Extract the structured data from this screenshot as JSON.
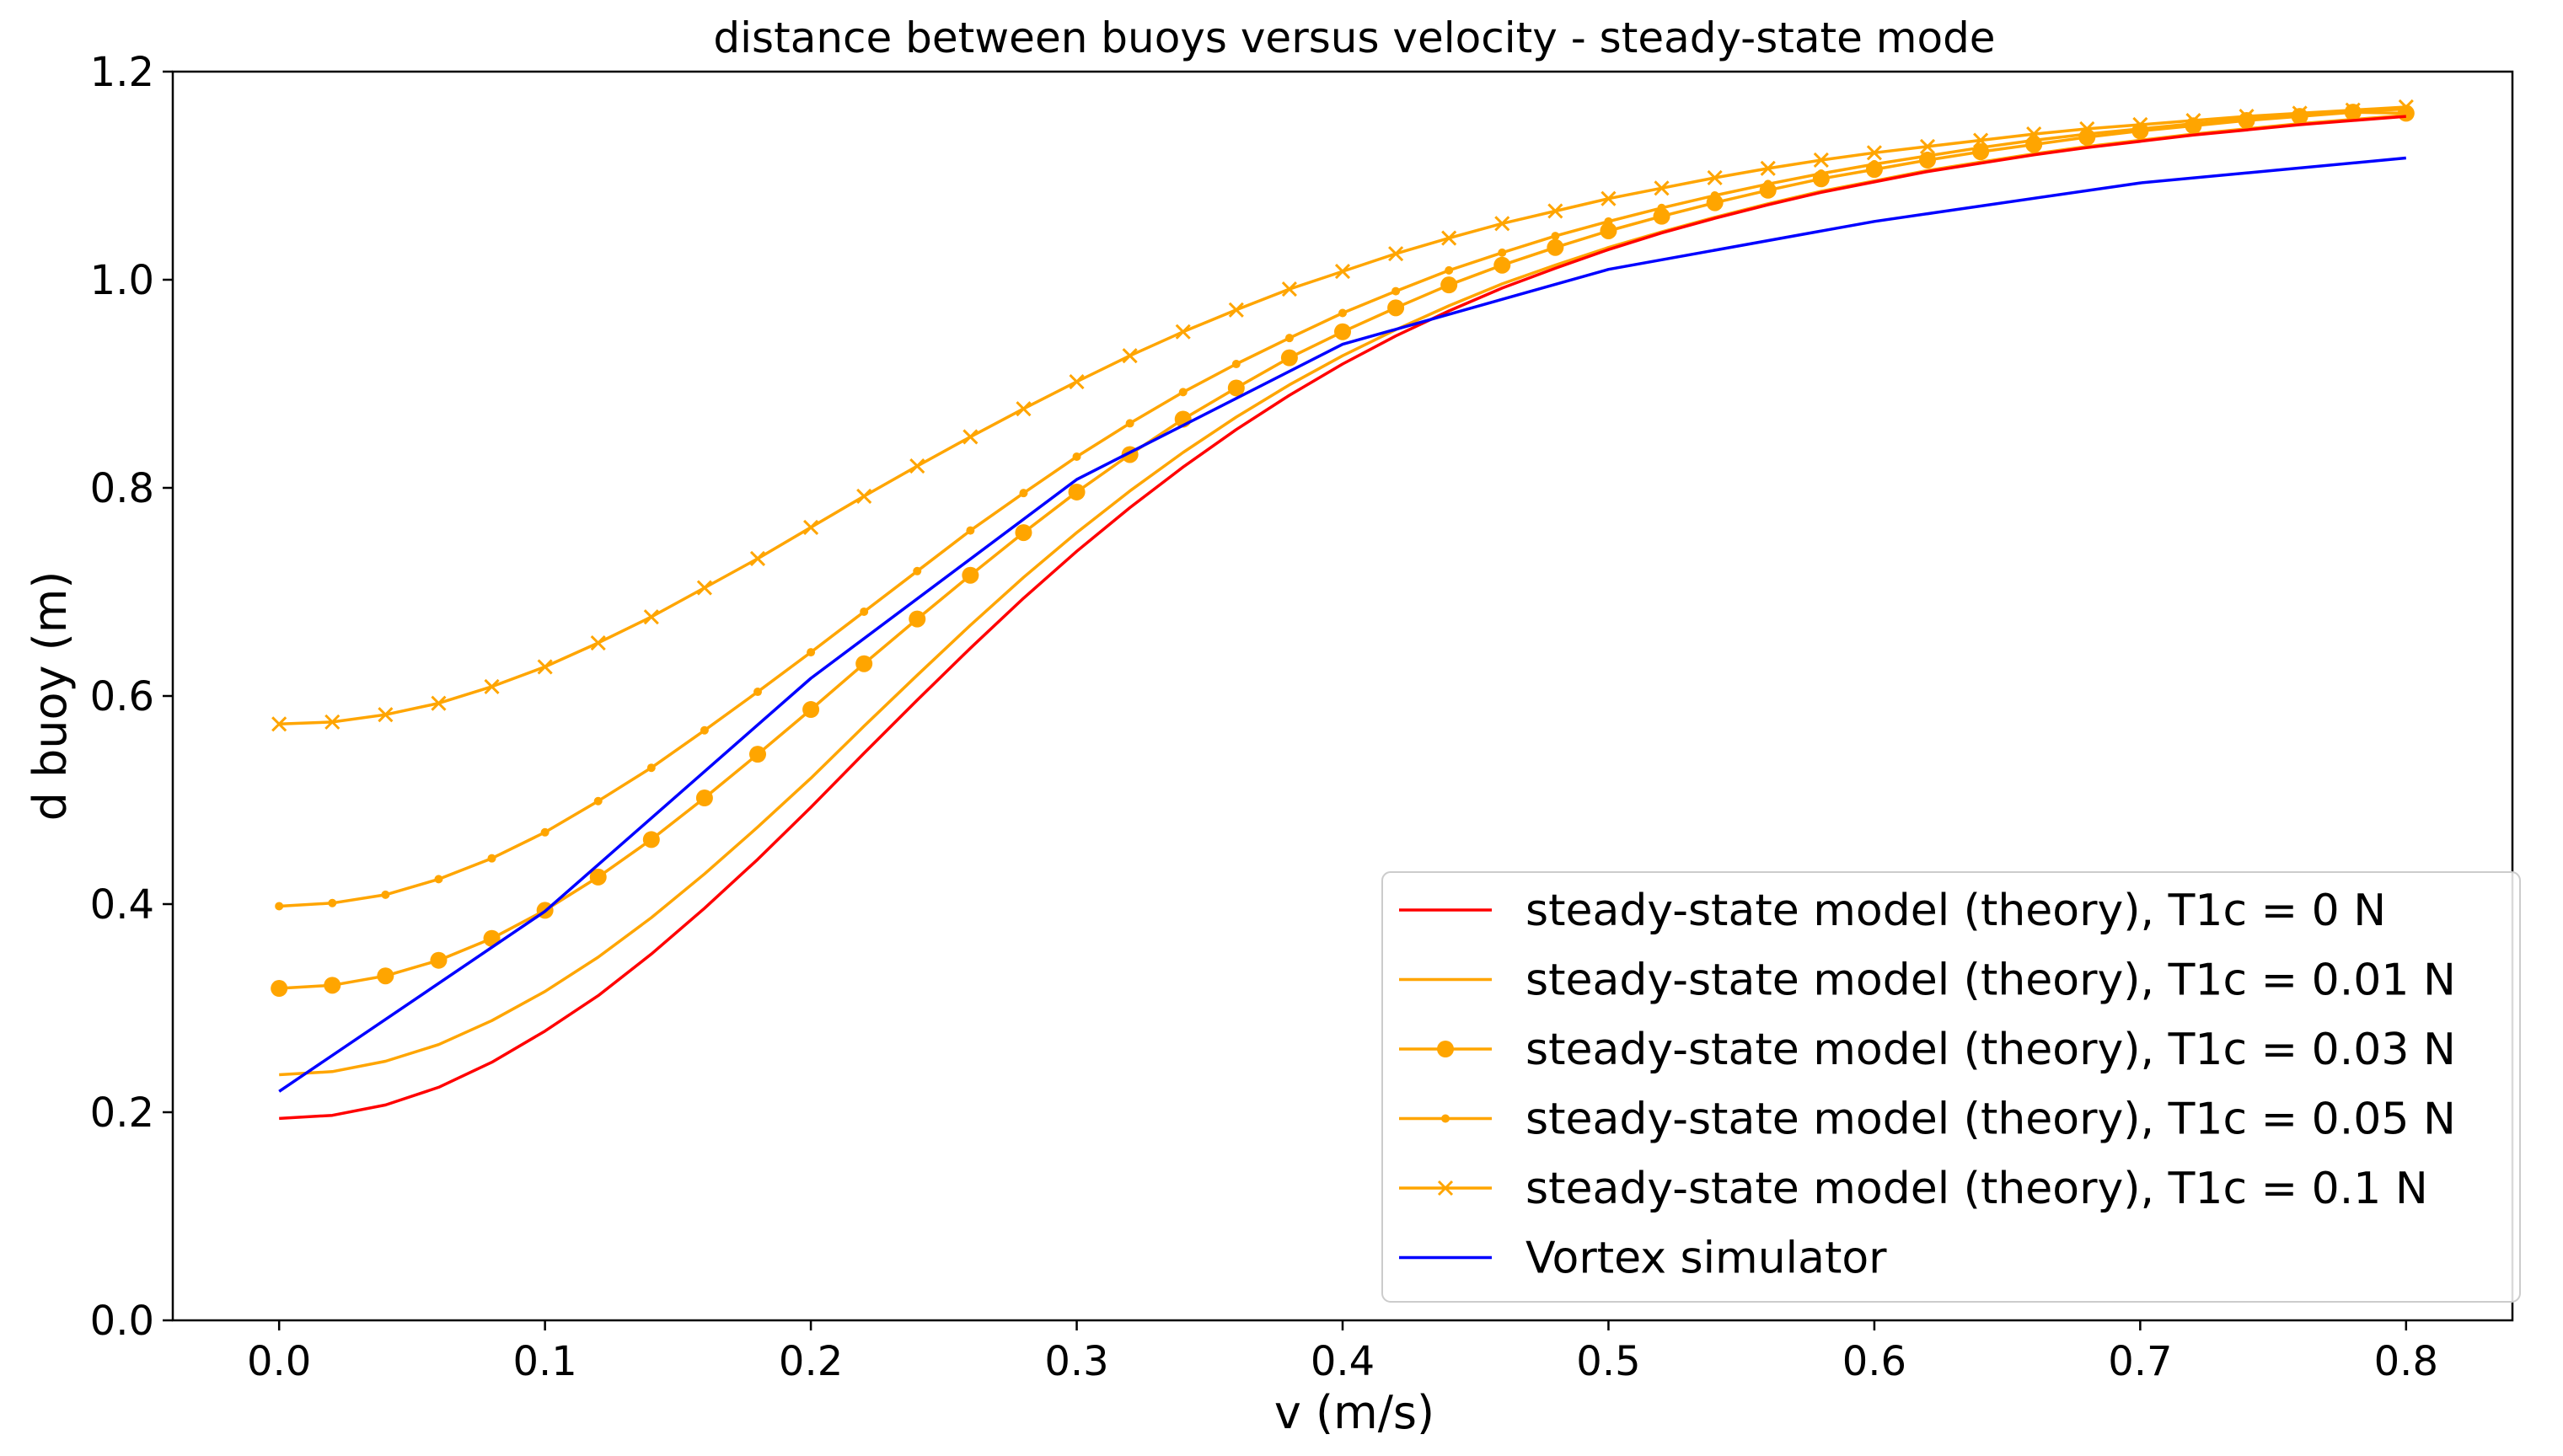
{
  "chart_data": {
    "type": "line",
    "title": "distance between buoys versus velocity - steady-state mode",
    "xlabel": "v (m/s)",
    "ylabel": "d buoy (m)",
    "xlim": [
      -0.04,
      0.84
    ],
    "ylim": [
      0.0,
      1.2
    ],
    "xticks": [
      0.0,
      0.1,
      0.2,
      0.3,
      0.4,
      0.5,
      0.6,
      0.7,
      0.8
    ],
    "yticks": [
      0.0,
      0.2,
      0.4,
      0.6,
      0.8,
      1.0,
      1.2
    ],
    "x_tick_labels": [
      "0.0",
      "0.1",
      "0.2",
      "0.3",
      "0.4",
      "0.5",
      "0.6",
      "0.7",
      "0.8"
    ],
    "y_tick_labels": [
      "0.0",
      "0.2",
      "0.4",
      "0.6",
      "0.8",
      "1.0",
      "1.2"
    ],
    "grid": false,
    "legend_position": "lower-right",
    "x": [
      0.0,
      0.02,
      0.04,
      0.06,
      0.08,
      0.1,
      0.12,
      0.14,
      0.16,
      0.18,
      0.2,
      0.22,
      0.24,
      0.26,
      0.28,
      0.3,
      0.32,
      0.34,
      0.36,
      0.38,
      0.4,
      0.42,
      0.44,
      0.46,
      0.48,
      0.5,
      0.52,
      0.54,
      0.56,
      0.58,
      0.6,
      0.62,
      0.64,
      0.66,
      0.68,
      0.7,
      0.72,
      0.74,
      0.76,
      0.78,
      0.8
    ],
    "series": [
      {
        "name": "steady-state model (theory), T1c = 0 N",
        "color": "#ff0000",
        "marker": "none",
        "values": [
          0.194,
          0.197,
          0.207,
          0.224,
          0.248,
          0.278,
          0.312,
          0.352,
          0.396,
          0.443,
          0.493,
          0.545,
          0.596,
          0.646,
          0.694,
          0.739,
          0.781,
          0.82,
          0.856,
          0.889,
          0.919,
          0.946,
          0.97,
          0.992,
          1.011,
          1.029,
          1.045,
          1.059,
          1.072,
          1.084,
          1.094,
          1.104,
          1.112,
          1.12,
          1.127,
          1.133,
          1.139,
          1.144,
          1.149,
          1.153,
          1.157
        ]
      },
      {
        "name": "steady-state model (theory), T1c = 0.01 N",
        "color": "#ffa500",
        "marker": "none",
        "values": [
          0.236,
          0.239,
          0.249,
          0.265,
          0.288,
          0.316,
          0.349,
          0.387,
          0.429,
          0.474,
          0.521,
          0.571,
          0.62,
          0.668,
          0.714,
          0.757,
          0.797,
          0.834,
          0.868,
          0.899,
          0.927,
          0.952,
          0.975,
          0.996,
          1.014,
          1.031,
          1.046,
          1.06,
          1.073,
          1.085,
          1.095,
          1.105,
          1.113,
          1.121,
          1.128,
          1.134,
          1.14,
          1.145,
          1.15,
          1.154,
          1.158
        ]
      },
      {
        "name": "steady-state model (theory), T1c = 0.03 N",
        "color": "#ffa500",
        "marker": "circle",
        "values": [
          0.319,
          0.322,
          0.331,
          0.346,
          0.367,
          0.394,
          0.426,
          0.462,
          0.502,
          0.544,
          0.587,
          0.631,
          0.674,
          0.716,
          0.757,
          0.796,
          0.832,
          0.866,
          0.896,
          0.925,
          0.95,
          0.973,
          0.995,
          1.014,
          1.031,
          1.047,
          1.061,
          1.074,
          1.086,
          1.097,
          1.106,
          1.115,
          1.123,
          1.13,
          1.137,
          1.143,
          1.148,
          1.153,
          1.157,
          1.161,
          1.16
        ]
      },
      {
        "name": "steady-state model (theory), T1c = 0.05 N",
        "color": "#ffa500",
        "marker": "dot",
        "values": [
          0.398,
          0.401,
          0.409,
          0.424,
          0.444,
          0.469,
          0.499,
          0.531,
          0.567,
          0.604,
          0.642,
          0.681,
          0.72,
          0.759,
          0.795,
          0.83,
          0.862,
          0.892,
          0.919,
          0.944,
          0.968,
          0.989,
          1.009,
          1.026,
          1.042,
          1.056,
          1.069,
          1.081,
          1.092,
          1.102,
          1.111,
          1.119,
          1.127,
          1.134,
          1.14,
          1.145,
          1.15,
          1.155,
          1.159,
          1.162,
          1.164
        ]
      },
      {
        "name": "steady-state model (theory), T1c = 0.1 N",
        "color": "#ffa500",
        "marker": "x",
        "values": [
          0.573,
          0.575,
          0.582,
          0.593,
          0.609,
          0.628,
          0.651,
          0.676,
          0.704,
          0.732,
          0.762,
          0.792,
          0.821,
          0.849,
          0.876,
          0.902,
          0.927,
          0.95,
          0.971,
          0.991,
          1.008,
          1.025,
          1.04,
          1.054,
          1.066,
          1.078,
          1.088,
          1.098,
          1.107,
          1.115,
          1.122,
          1.128,
          1.134,
          1.14,
          1.145,
          1.149,
          1.153,
          1.157,
          1.16,
          1.163,
          1.166
        ]
      },
      {
        "name": "Vortex simulator",
        "color": "#0000ff",
        "marker": "none",
        "x": [
          0.0,
          0.1,
          0.2,
          0.3,
          0.4,
          0.5,
          0.6,
          0.7,
          0.8
        ],
        "values": [
          0.22,
          0.393,
          0.617,
          0.808,
          0.938,
          1.01,
          1.056,
          1.093,
          1.117
        ]
      }
    ]
  }
}
